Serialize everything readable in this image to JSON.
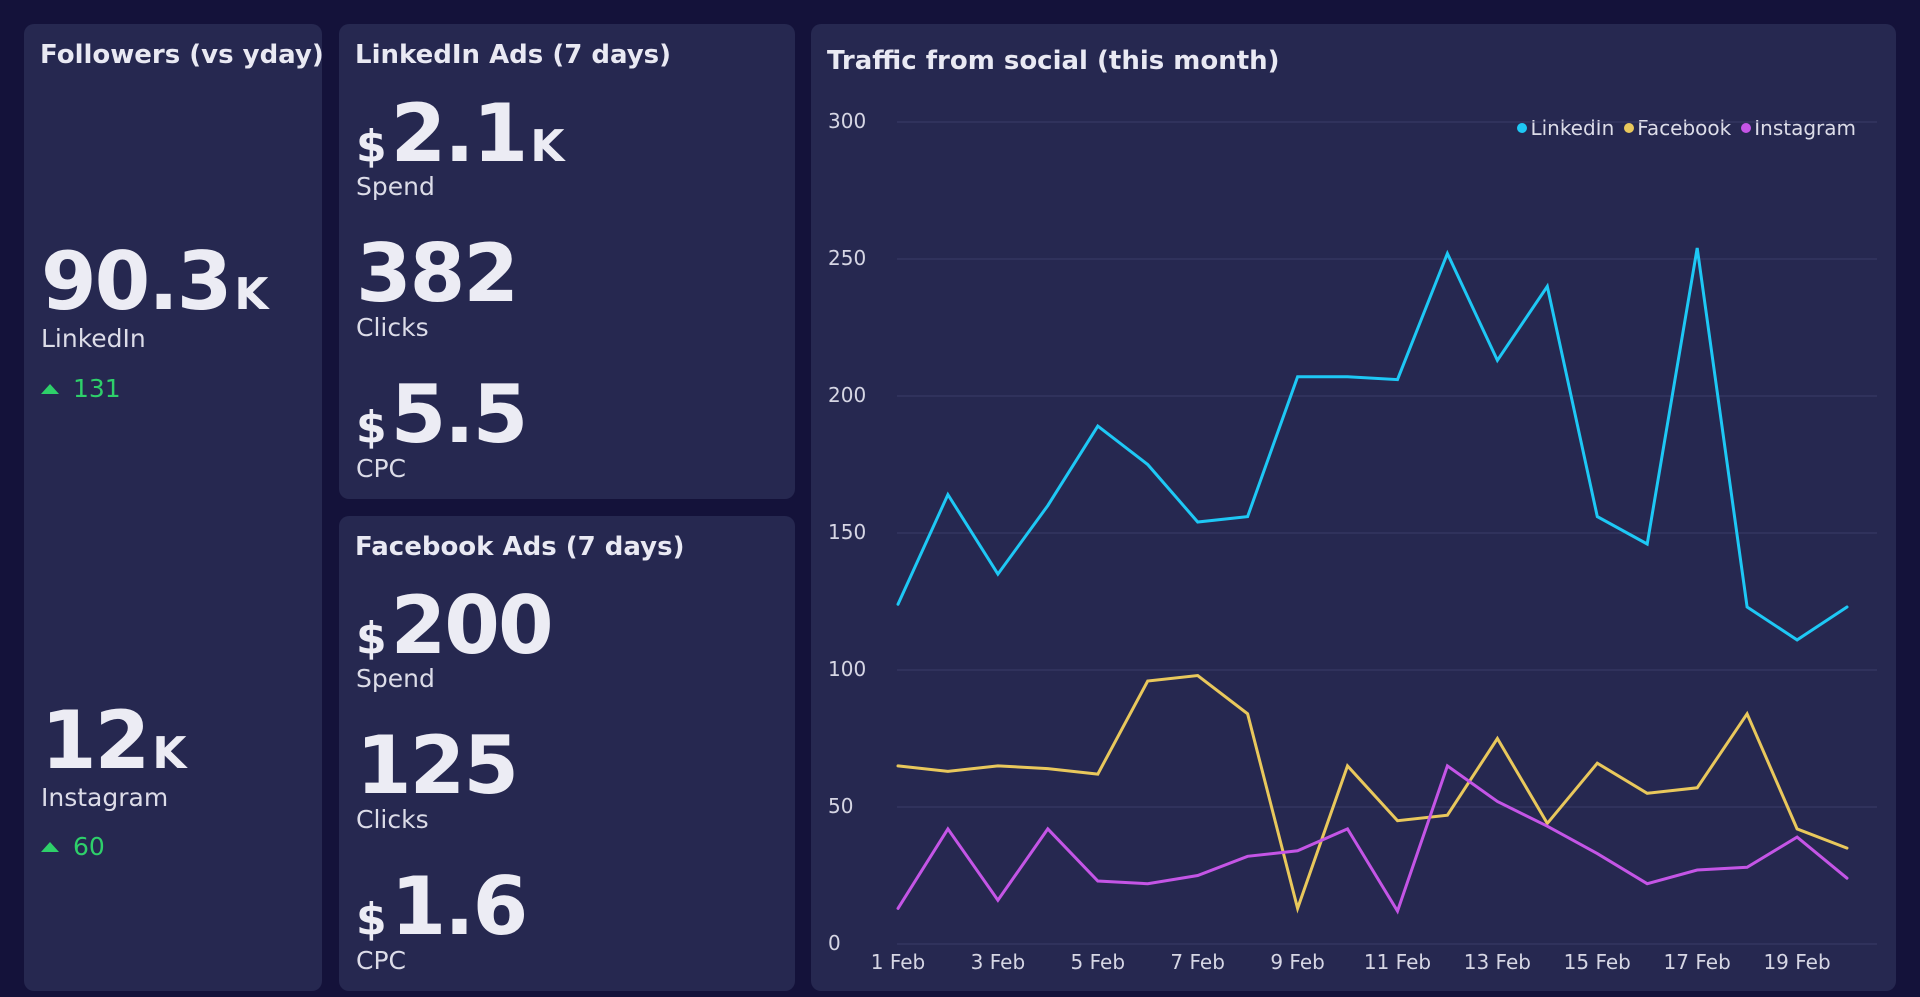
{
  "followers": {
    "title": "Followers (vs yday)",
    "linkedin": {
      "value": "90.3",
      "unit": "K",
      "label": "LinkedIn",
      "delta": "131"
    },
    "instagram": {
      "value": "12",
      "unit": "K",
      "label": "Instagram",
      "delta": "60"
    }
  },
  "linkedin_ads": {
    "title": "LinkedIn Ads (7 days)",
    "spend": {
      "currency": "$",
      "value": "2.1",
      "unit": "K",
      "label": "Spend"
    },
    "clicks": {
      "value": "382",
      "label": "Clicks"
    },
    "cpc": {
      "currency": "$",
      "value": "5.5",
      "label": "CPC"
    }
  },
  "facebook_ads": {
    "title": "Facebook Ads (7 days)",
    "spend": {
      "currency": "$",
      "value": "200",
      "label": "Spend"
    },
    "clicks": {
      "value": "125",
      "label": "Clicks"
    },
    "cpc": {
      "currency": "$",
      "value": "1.6",
      "label": "CPC"
    }
  },
  "colors": {
    "linkedin": "#1ec8f5",
    "facebook": "#e9c85c",
    "instagram": "#c455e6",
    "positive": "#2ed06a"
  },
  "chart_data": {
    "type": "line",
    "title": "Traffic from social (this month)",
    "xlabel": "",
    "ylabel": "",
    "ylim": [
      0,
      300
    ],
    "yticks": [
      0,
      50,
      100,
      150,
      200,
      250,
      300
    ],
    "grid": true,
    "legend": "top-right",
    "x": [
      "1 Feb",
      "2 Feb",
      "3 Feb",
      "4 Feb",
      "5 Feb",
      "6 Feb",
      "7 Feb",
      "8 Feb",
      "9 Feb",
      "10 Feb",
      "11 Feb",
      "12 Feb",
      "13 Feb",
      "14 Feb",
      "15 Feb",
      "16 Feb",
      "17 Feb",
      "18 Feb",
      "19 Feb",
      "20 Feb"
    ],
    "tick_labels": [
      "1 Feb",
      "3 Feb",
      "5 Feb",
      "7 Feb",
      "9 Feb",
      "11 Feb",
      "13 Feb",
      "15 Feb",
      "17 Feb",
      "19 Feb"
    ],
    "series": [
      {
        "name": "LinkedIn",
        "color": "#1ec8f5",
        "values": [
          124,
          164,
          135,
          160,
          189,
          175,
          154,
          156,
          207,
          207,
          206,
          252,
          213,
          240,
          156,
          146,
          254,
          123,
          111,
          123
        ]
      },
      {
        "name": "Facebook",
        "color": "#e9c85c",
        "values": [
          65,
          63,
          65,
          64,
          62,
          96,
          98,
          84,
          13,
          65,
          45,
          47,
          75,
          44,
          66,
          55,
          57,
          84,
          42,
          35
        ]
      },
      {
        "name": "Instagram",
        "color": "#c455e6",
        "values": [
          13,
          42,
          16,
          42,
          23,
          22,
          25,
          32,
          34,
          42,
          12,
          65,
          52,
          43,
          33,
          22,
          27,
          28,
          39,
          24
        ]
      }
    ]
  }
}
